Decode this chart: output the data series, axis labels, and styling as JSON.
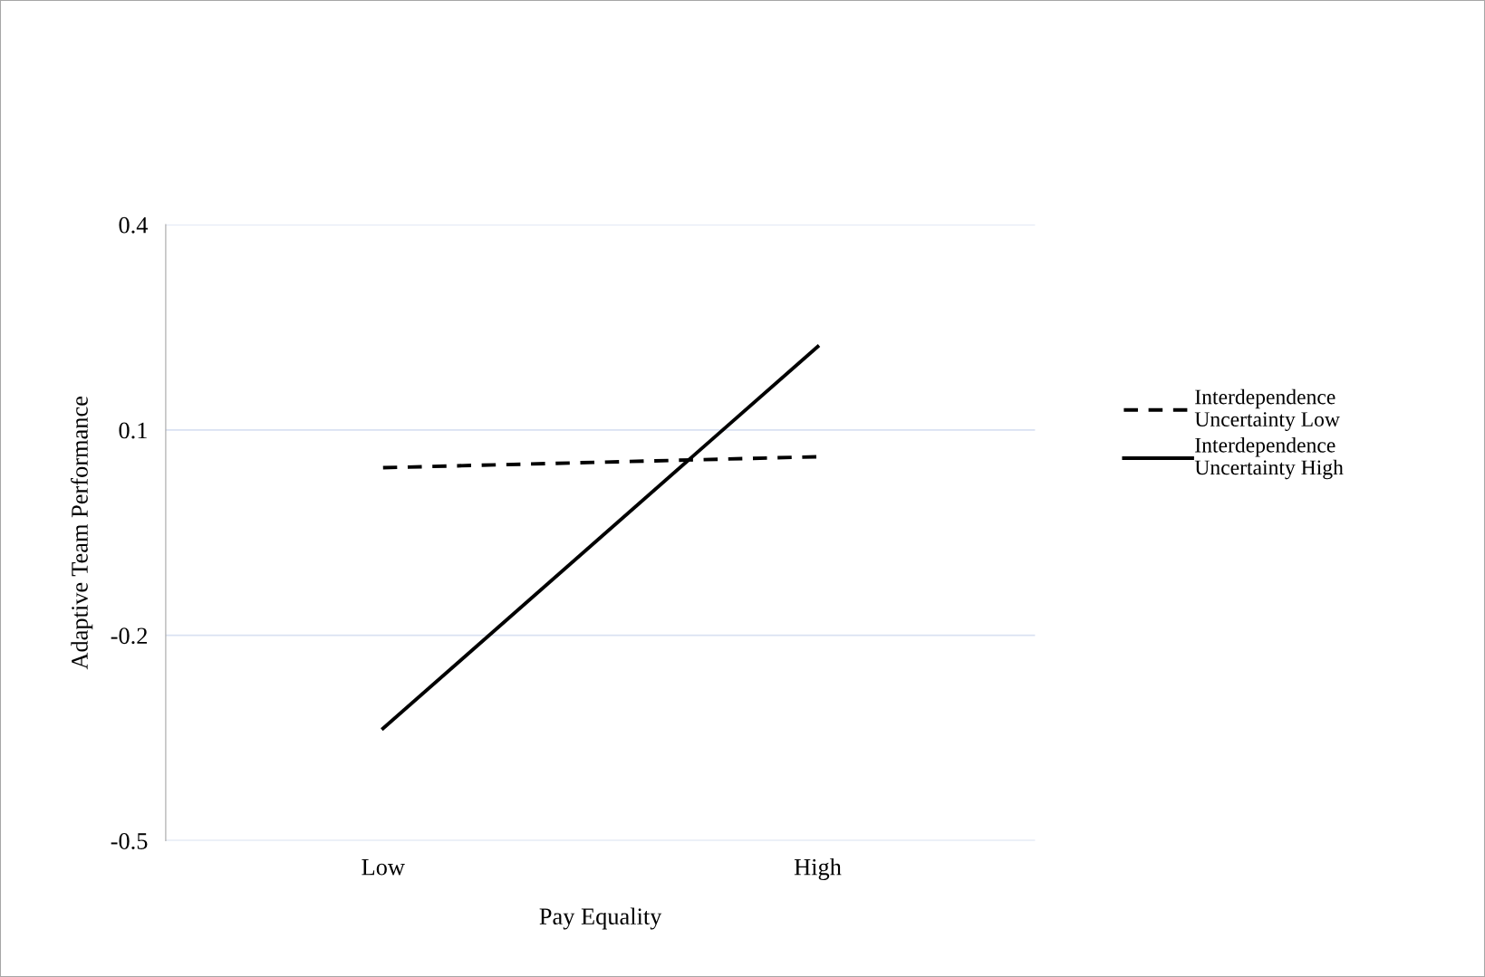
{
  "chart_data": {
    "type": "line",
    "xlabel": "Pay Equality",
    "ylabel": "Adaptive Team Performance",
    "categories": [
      "Low",
      "High"
    ],
    "series": [
      {
        "name": "Interdependence\nUncertainty Low",
        "color": "#000000",
        "line_style": "dashed",
        "values": [
          0.045,
          0.061
        ]
      },
      {
        "name": "Interdependence\nUncertainty High",
        "color": "#000000",
        "line_style": "solid",
        "values": [
          -0.336,
          0.222
        ]
      }
    ],
    "ylim": [
      -0.5,
      0.4
    ],
    "yticks": [
      -0.5,
      -0.2,
      0.1,
      0.4
    ],
    "grid": "y",
    "legend": "right",
    "marker": "none"
  }
}
